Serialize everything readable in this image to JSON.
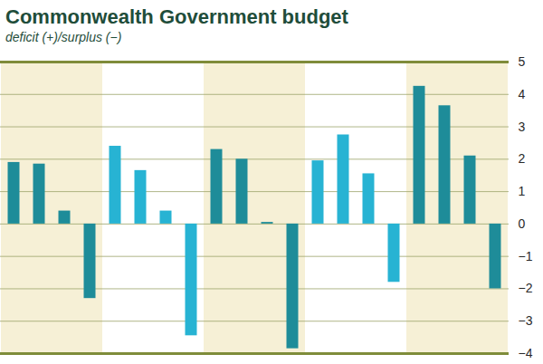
{
  "chart_data": {
    "type": "bar",
    "title": "Commonwealth Government budget",
    "subtitle": "deficit (+)/surplus (−)",
    "categories": [
      null,
      null,
      null,
      null,
      null,
      null,
      null,
      null,
      null,
      null,
      null,
      null,
      null,
      null,
      null,
      null,
      null,
      null,
      null,
      null
    ],
    "values": [
      1.9,
      1.85,
      0.4,
      -2.3,
      2.4,
      1.65,
      0.4,
      -3.45,
      2.3,
      2.0,
      0.05,
      -3.85,
      1.95,
      2.75,
      1.55,
      -1.8,
      4.25,
      3.65,
      2.1,
      -2.0
    ],
    "colors": [
      "#1e8c99",
      "#1e8c99",
      "#1e8c99",
      "#1e8c99",
      "#27b3d3",
      "#27b3d3",
      "#27b3d3",
      "#27b3d3",
      "#1e8c99",
      "#1e8c99",
      "#1e8c99",
      "#1e8c99",
      "#27b3d3",
      "#27b3d3",
      "#27b3d3",
      "#27b3d3",
      "#1e8c99",
      "#1e8c99",
      "#1e8c99",
      "#1e8c99"
    ],
    "ylim": [
      -4,
      5
    ],
    "yticks": [
      -4,
      -3,
      -2,
      -1,
      0,
      1,
      2,
      3,
      4,
      5
    ],
    "grid": true,
    "tick_labels": "y"
  }
}
